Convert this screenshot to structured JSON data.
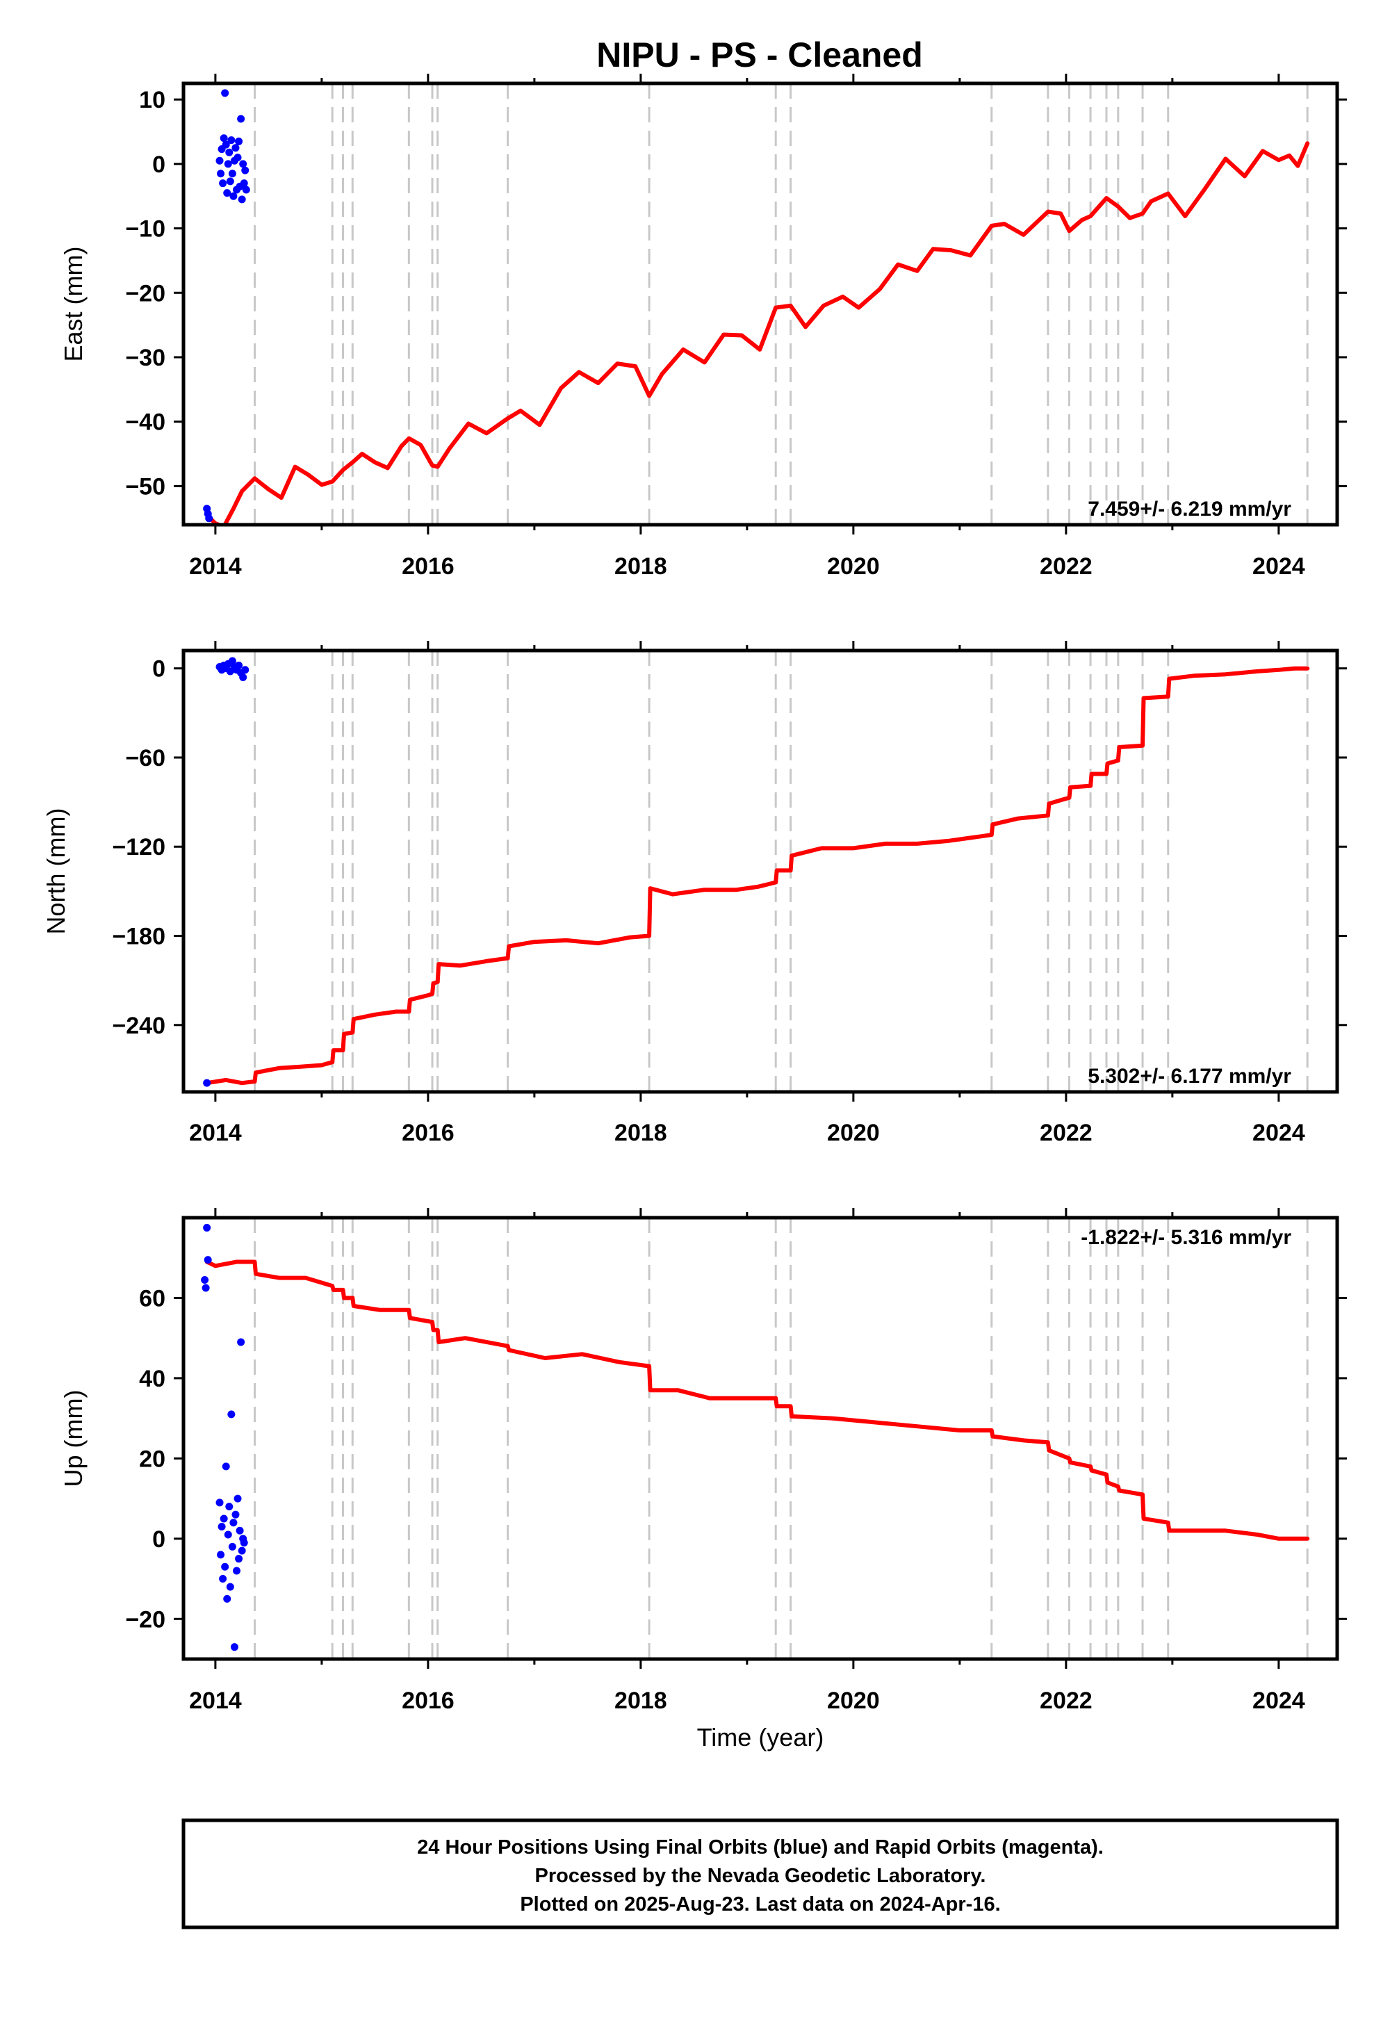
{
  "title": "NIPU  - PS - Cleaned",
  "footer": {
    "lines": [
      "24 Hour Positions Using Final Orbits (blue) and Rapid Orbits (magenta).",
      "Processed by the Nevada Geodetic Laboratory.",
      "Plotted on 2025-Aug-23. Last data on 2024-Apr-16."
    ]
  },
  "colors": {
    "model": "#ff0000",
    "final_orbit_points": "#0000ff",
    "event_lines": "#c8c8c8",
    "frame": "#000000"
  },
  "chart_data": [
    {
      "type": "line",
      "component": "east",
      "title": "NIPU  - PS - Cleaned",
      "xlabel": "",
      "ylabel": "East (mm)",
      "xlim": [
        2013.7,
        2024.55
      ],
      "ylim": [
        -56,
        12.5
      ],
      "x_ticks": [
        2014,
        2016,
        2018,
        2020,
        2022,
        2024
      ],
      "x_tick_labels": [
        "2014",
        "2016",
        "2018",
        "2020",
        "2022",
        "2024"
      ],
      "y_ticks": [
        10,
        0,
        -10,
        -20,
        -30,
        -40,
        -50
      ],
      "y_tick_labels": [
        "10",
        "0",
        "−10",
        "−20",
        "−30",
        "−40",
        "−50"
      ],
      "rate_annotation": "7.459+/- 6.219 mm/yr",
      "grid": false,
      "event_lines_x": [
        2014.37,
        2015.1,
        2015.2,
        2015.29,
        2015.82,
        2016.04,
        2016.09,
        2016.75,
        2018.08,
        2019.27,
        2019.41,
        2021.3,
        2021.83,
        2022.03,
        2022.23,
        2022.38,
        2022.49,
        2022.72,
        2022.96,
        2024.27
      ],
      "model_series": {
        "name": "model",
        "x": [
          2013.92,
          2014.0,
          2014.08,
          2014.17,
          2014.25,
          2014.37,
          2014.5,
          2014.62,
          2014.75,
          2014.87,
          2015.0,
          2015.1,
          2015.2,
          2015.29,
          2015.38,
          2015.5,
          2015.62,
          2015.75,
          2015.82,
          2015.93,
          2016.04,
          2016.09,
          2016.2,
          2016.38,
          2016.55,
          2016.75,
          2016.87,
          2017.05,
          2017.25,
          2017.42,
          2017.6,
          2017.78,
          2017.95,
          2018.08,
          2018.2,
          2018.4,
          2018.6,
          2018.78,
          2018.95,
          2019.12,
          2019.27,
          2019.41,
          2019.55,
          2019.72,
          2019.9,
          2020.05,
          2020.25,
          2020.42,
          2020.6,
          2020.75,
          2020.92,
          2021.1,
          2021.3,
          2021.42,
          2021.6,
          2021.83,
          2021.95,
          2022.03,
          2022.15,
          2022.23,
          2022.38,
          2022.49,
          2022.6,
          2022.72,
          2022.8,
          2022.96,
          2023.12,
          2023.3,
          2023.5,
          2023.68,
          2023.85,
          2024.0,
          2024.1,
          2024.18,
          2024.27
        ],
        "y": [
          -54.5,
          -55.8,
          -56.3,
          -53.5,
          -50.8,
          -48.8,
          -50.5,
          -51.8,
          -47.0,
          -48.2,
          -49.8,
          -49.3,
          -47.5,
          -46.3,
          -45.0,
          -46.3,
          -47.2,
          -43.8,
          -42.6,
          -43.6,
          -46.8,
          -47.0,
          -44.2,
          -40.3,
          -41.8,
          -39.5,
          -38.3,
          -40.5,
          -34.8,
          -32.3,
          -34.0,
          -31.0,
          -31.4,
          -36.0,
          -32.6,
          -28.8,
          -30.8,
          -26.5,
          -26.6,
          -28.8,
          -22.3,
          -22.0,
          -25.3,
          -22.0,
          -20.6,
          -22.3,
          -19.4,
          -15.6,
          -16.6,
          -13.2,
          -13.4,
          -14.2,
          -9.6,
          -9.3,
          -11.0,
          -7.4,
          -7.7,
          -10.4,
          -8.7,
          -8.1,
          -5.3,
          -6.6,
          -8.4,
          -7.7,
          -5.8,
          -4.6,
          -8.1,
          -4.0,
          0.8,
          -1.9,
          2.0,
          0.6,
          1.3,
          -0.3,
          3.2
        ]
      },
      "final_points": {
        "name": "Final Orbits",
        "x": [
          2013.92,
          2013.93,
          2013.94,
          2014.04,
          2014.05,
          2014.06,
          2014.07,
          2014.08,
          2014.09,
          2014.1,
          2014.11,
          2014.12,
          2014.13,
          2014.14,
          2014.15,
          2014.16,
          2014.17,
          2014.18,
          2014.19,
          2014.2,
          2014.21,
          2014.22,
          2014.23,
          2014.24,
          2014.25,
          2014.26,
          2014.27,
          2014.28,
          2014.29
        ],
        "y": [
          -53.5,
          -54.3,
          -55.0,
          0.5,
          -1.5,
          2.3,
          -3.0,
          4.0,
          11.0,
          3.0,
          -4.5,
          0.0,
          1.8,
          -2.7,
          3.7,
          -1.5,
          -5.0,
          0.5,
          2.5,
          -4.0,
          1.0,
          3.5,
          -3.5,
          7.0,
          -5.5,
          0.0,
          -3.0,
          -1.0,
          -4.0
        ]
      }
    },
    {
      "type": "line",
      "component": "north",
      "title": "",
      "xlabel": "",
      "ylabel": "North (mm)",
      "xlim": [
        2013.7,
        2024.55
      ],
      "ylim": [
        -285,
        12
      ],
      "x_ticks": [
        2014,
        2016,
        2018,
        2020,
        2022,
        2024
      ],
      "x_tick_labels": [
        "2014",
        "2016",
        "2018",
        "2020",
        "2022",
        "2024"
      ],
      "y_ticks": [
        0,
        -60,
        -120,
        -180,
        -240
      ],
      "y_tick_labels": [
        "0",
        "−60",
        "−120",
        "−180",
        "−240"
      ],
      "rate_annotation": "5.302+/- 6.177 mm/yr",
      "grid": false,
      "event_lines_x": [
        2014.37,
        2015.1,
        2015.2,
        2015.29,
        2015.82,
        2016.04,
        2016.09,
        2016.75,
        2018.08,
        2019.27,
        2019.41,
        2021.3,
        2021.83,
        2022.03,
        2022.23,
        2022.38,
        2022.49,
        2022.72,
        2022.96,
        2024.27
      ],
      "model_series": {
        "name": "model",
        "x": [
          2013.92,
          2014.1,
          2014.25,
          2014.37,
          2014.38,
          2014.6,
          2014.8,
          2015.0,
          2015.1,
          2015.11,
          2015.2,
          2015.21,
          2015.29,
          2015.3,
          2015.5,
          2015.7,
          2015.82,
          2015.83,
          2016.0,
          2016.04,
          2016.05,
          2016.09,
          2016.1,
          2016.3,
          2016.55,
          2016.75,
          2016.76,
          2017.0,
          2017.3,
          2017.6,
          2017.9,
          2018.08,
          2018.09,
          2018.3,
          2018.6,
          2018.9,
          2019.1,
          2019.27,
          2019.28,
          2019.41,
          2019.42,
          2019.7,
          2020.0,
          2020.3,
          2020.6,
          2020.9,
          2021.2,
          2021.3,
          2021.31,
          2021.55,
          2021.83,
          2021.84,
          2022.03,
          2022.04,
          2022.23,
          2022.24,
          2022.38,
          2022.39,
          2022.49,
          2022.5,
          2022.72,
          2022.73,
          2022.96,
          2022.97,
          2023.2,
          2023.5,
          2023.8,
          2024.0,
          2024.15,
          2024.27
        ],
        "y": [
          -279,
          -277,
          -279,
          -278,
          -272,
          -269,
          -268,
          -267,
          -265,
          -257,
          -257,
          -246,
          -245,
          -236,
          -233,
          -231,
          -231,
          -223,
          -220,
          -219,
          -212,
          -211,
          -199,
          -200,
          -197,
          -195,
          -187,
          -184,
          -183,
          -185,
          -181,
          -180,
          -148,
          -152,
          -149,
          -149,
          -147,
          -144,
          -136,
          -136,
          -126,
          -121,
          -121,
          -118,
          -118,
          -116,
          -113,
          -112,
          -105,
          -101,
          -99,
          -91,
          -87,
          -80,
          -79,
          -71,
          -71,
          -64,
          -62,
          -53,
          -52,
          -20,
          -19,
          -7,
          -5,
          -4,
          -2,
          -1,
          0,
          0
        ]
      },
      "final_points": {
        "name": "Final Orbits",
        "x": [
          2013.92,
          2014.04,
          2014.06,
          2014.08,
          2014.1,
          2014.12,
          2014.14,
          2014.16,
          2014.18,
          2014.2,
          2014.22,
          2014.24,
          2014.26,
          2014.28
        ],
        "y": [
          -279,
          1,
          -1,
          2,
          0,
          3,
          -2,
          5,
          1,
          -1,
          2,
          -3,
          -6,
          -1
        ]
      }
    },
    {
      "type": "line",
      "component": "up",
      "title": "",
      "xlabel": "Time (year)",
      "ylabel": "Up (mm)",
      "xlim": [
        2013.7,
        2024.55
      ],
      "ylim": [
        -30,
        80
      ],
      "x_ticks": [
        2014,
        2016,
        2018,
        2020,
        2022,
        2024
      ],
      "x_tick_labels": [
        "2014",
        "2016",
        "2018",
        "2020",
        "2022",
        "2024"
      ],
      "y_ticks": [
        60,
        40,
        20,
        0,
        -20
      ],
      "y_tick_labels": [
        "60",
        "40",
        "20",
        "0",
        "−20"
      ],
      "rate_annotation": "-1.822+/- 5.316 mm/yr",
      "grid": false,
      "event_lines_x": [
        2014.37,
        2015.1,
        2015.2,
        2015.29,
        2015.82,
        2016.04,
        2016.09,
        2016.75,
        2018.08,
        2019.27,
        2019.41,
        2021.3,
        2021.83,
        2022.03,
        2022.23,
        2022.38,
        2022.49,
        2022.72,
        2022.96,
        2024.27
      ],
      "model_series": {
        "name": "model",
        "x": [
          2013.92,
          2014.0,
          2014.2,
          2014.37,
          2014.38,
          2014.6,
          2014.85,
          2015.1,
          2015.11,
          2015.2,
          2015.21,
          2015.29,
          2015.3,
          2015.55,
          2015.82,
          2015.83,
          2016.04,
          2016.05,
          2016.09,
          2016.1,
          2016.35,
          2016.75,
          2016.76,
          2017.1,
          2017.45,
          2017.8,
          2018.08,
          2018.09,
          2018.35,
          2018.65,
          2019.0,
          2019.27,
          2019.28,
          2019.41,
          2019.42,
          2019.8,
          2020.2,
          2020.6,
          2021.0,
          2021.3,
          2021.31,
          2021.6,
          2021.83,
          2021.84,
          2022.03,
          2022.04,
          2022.23,
          2022.24,
          2022.38,
          2022.39,
          2022.49,
          2022.5,
          2022.72,
          2022.73,
          2022.96,
          2022.97,
          2023.2,
          2023.5,
          2023.8,
          2024.0,
          2024.15,
          2024.27
        ],
        "y": [
          69,
          68,
          69,
          69,
          66,
          65,
          65,
          63,
          62,
          62,
          60,
          60,
          58,
          57,
          57,
          55,
          54,
          52,
          52,
          49,
          50,
          48,
          47,
          45,
          46,
          44,
          43,
          37,
          37,
          35,
          35,
          35,
          33,
          33,
          30.5,
          30,
          29,
          28,
          27,
          27,
          25.5,
          24.5,
          24,
          22,
          20,
          19,
          18,
          17,
          16,
          14,
          13,
          12,
          11,
          5,
          4,
          2,
          2,
          2,
          1,
          0,
          0,
          0
        ]
      },
      "final_points": {
        "name": "Final Orbits",
        "x": [
          2013.9,
          2013.91,
          2013.92,
          2013.93,
          2014.04,
          2014.05,
          2014.06,
          2014.07,
          2014.08,
          2014.09,
          2014.1,
          2014.11,
          2014.12,
          2014.13,
          2014.14,
          2014.15,
          2014.16,
          2014.17,
          2014.18,
          2014.19,
          2014.2,
          2014.21,
          2014.22,
          2014.23,
          2014.24,
          2014.25,
          2014.26,
          2014.27
        ],
        "y": [
          64.5,
          62.5,
          77.5,
          69.5,
          9,
          -4,
          3,
          -10,
          5,
          -7,
          18,
          -15,
          1,
          8,
          -12,
          31,
          -2,
          4,
          -27,
          6,
          -8,
          10,
          -5,
          2,
          49,
          -3,
          0,
          -1
        ]
      }
    }
  ]
}
